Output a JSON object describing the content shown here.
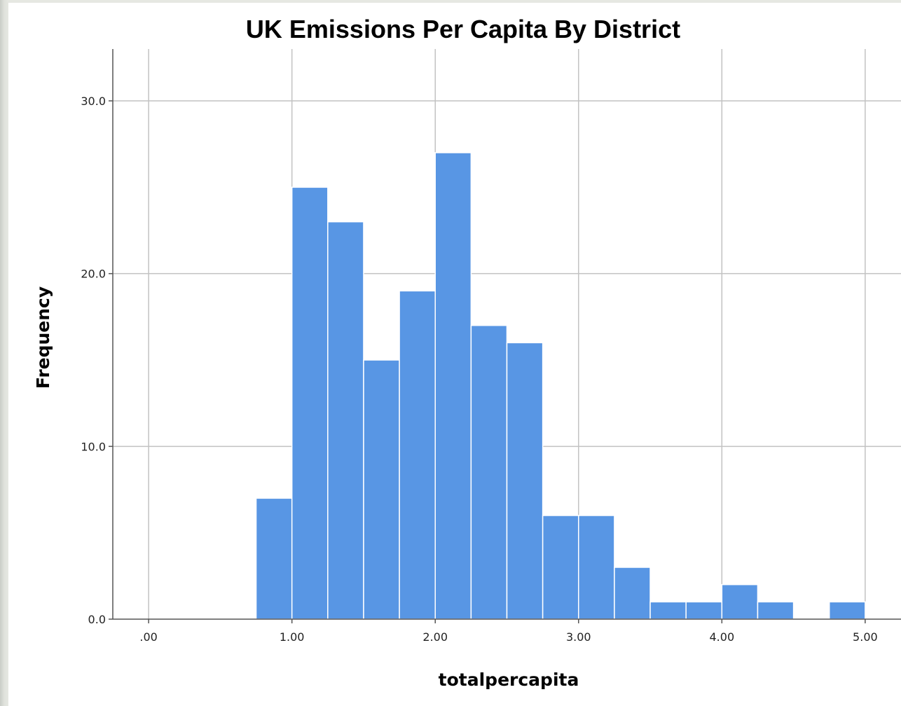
{
  "chart_data": {
    "type": "bar",
    "title": "UK Emissions Per Capita By District",
    "xlabel": "totalpercapita",
    "ylabel": "Frequency",
    "xlim": [
      -0.25,
      5.25
    ],
    "ylim": [
      0,
      33
    ],
    "x_ticks": [
      0,
      1,
      2,
      3,
      4,
      5
    ],
    "x_tick_labels": [
      ".00",
      "1.00",
      "2.00",
      "3.00",
      "4.00",
      "5.00"
    ],
    "y_ticks": [
      0,
      10,
      20,
      30
    ],
    "y_tick_labels": [
      "0.0",
      "10.0",
      "20.0",
      "30.0"
    ],
    "bin_width": 0.25,
    "bins": [
      {
        "start": 0.75,
        "count": 7
      },
      {
        "start": 1.0,
        "count": 25
      },
      {
        "start": 1.25,
        "count": 23
      },
      {
        "start": 1.5,
        "count": 15
      },
      {
        "start": 1.75,
        "count": 19
      },
      {
        "start": 2.0,
        "count": 27
      },
      {
        "start": 2.25,
        "count": 17
      },
      {
        "start": 2.5,
        "count": 16
      },
      {
        "start": 2.75,
        "count": 6
      },
      {
        "start": 3.0,
        "count": 6
      },
      {
        "start": 3.25,
        "count": 3
      },
      {
        "start": 3.5,
        "count": 1
      },
      {
        "start": 3.75,
        "count": 1
      },
      {
        "start": 4.0,
        "count": 2
      },
      {
        "start": 4.25,
        "count": 1
      },
      {
        "start": 4.75,
        "count": 1
      }
    ],
    "grid": true,
    "bar_color": "#5896e4"
  }
}
